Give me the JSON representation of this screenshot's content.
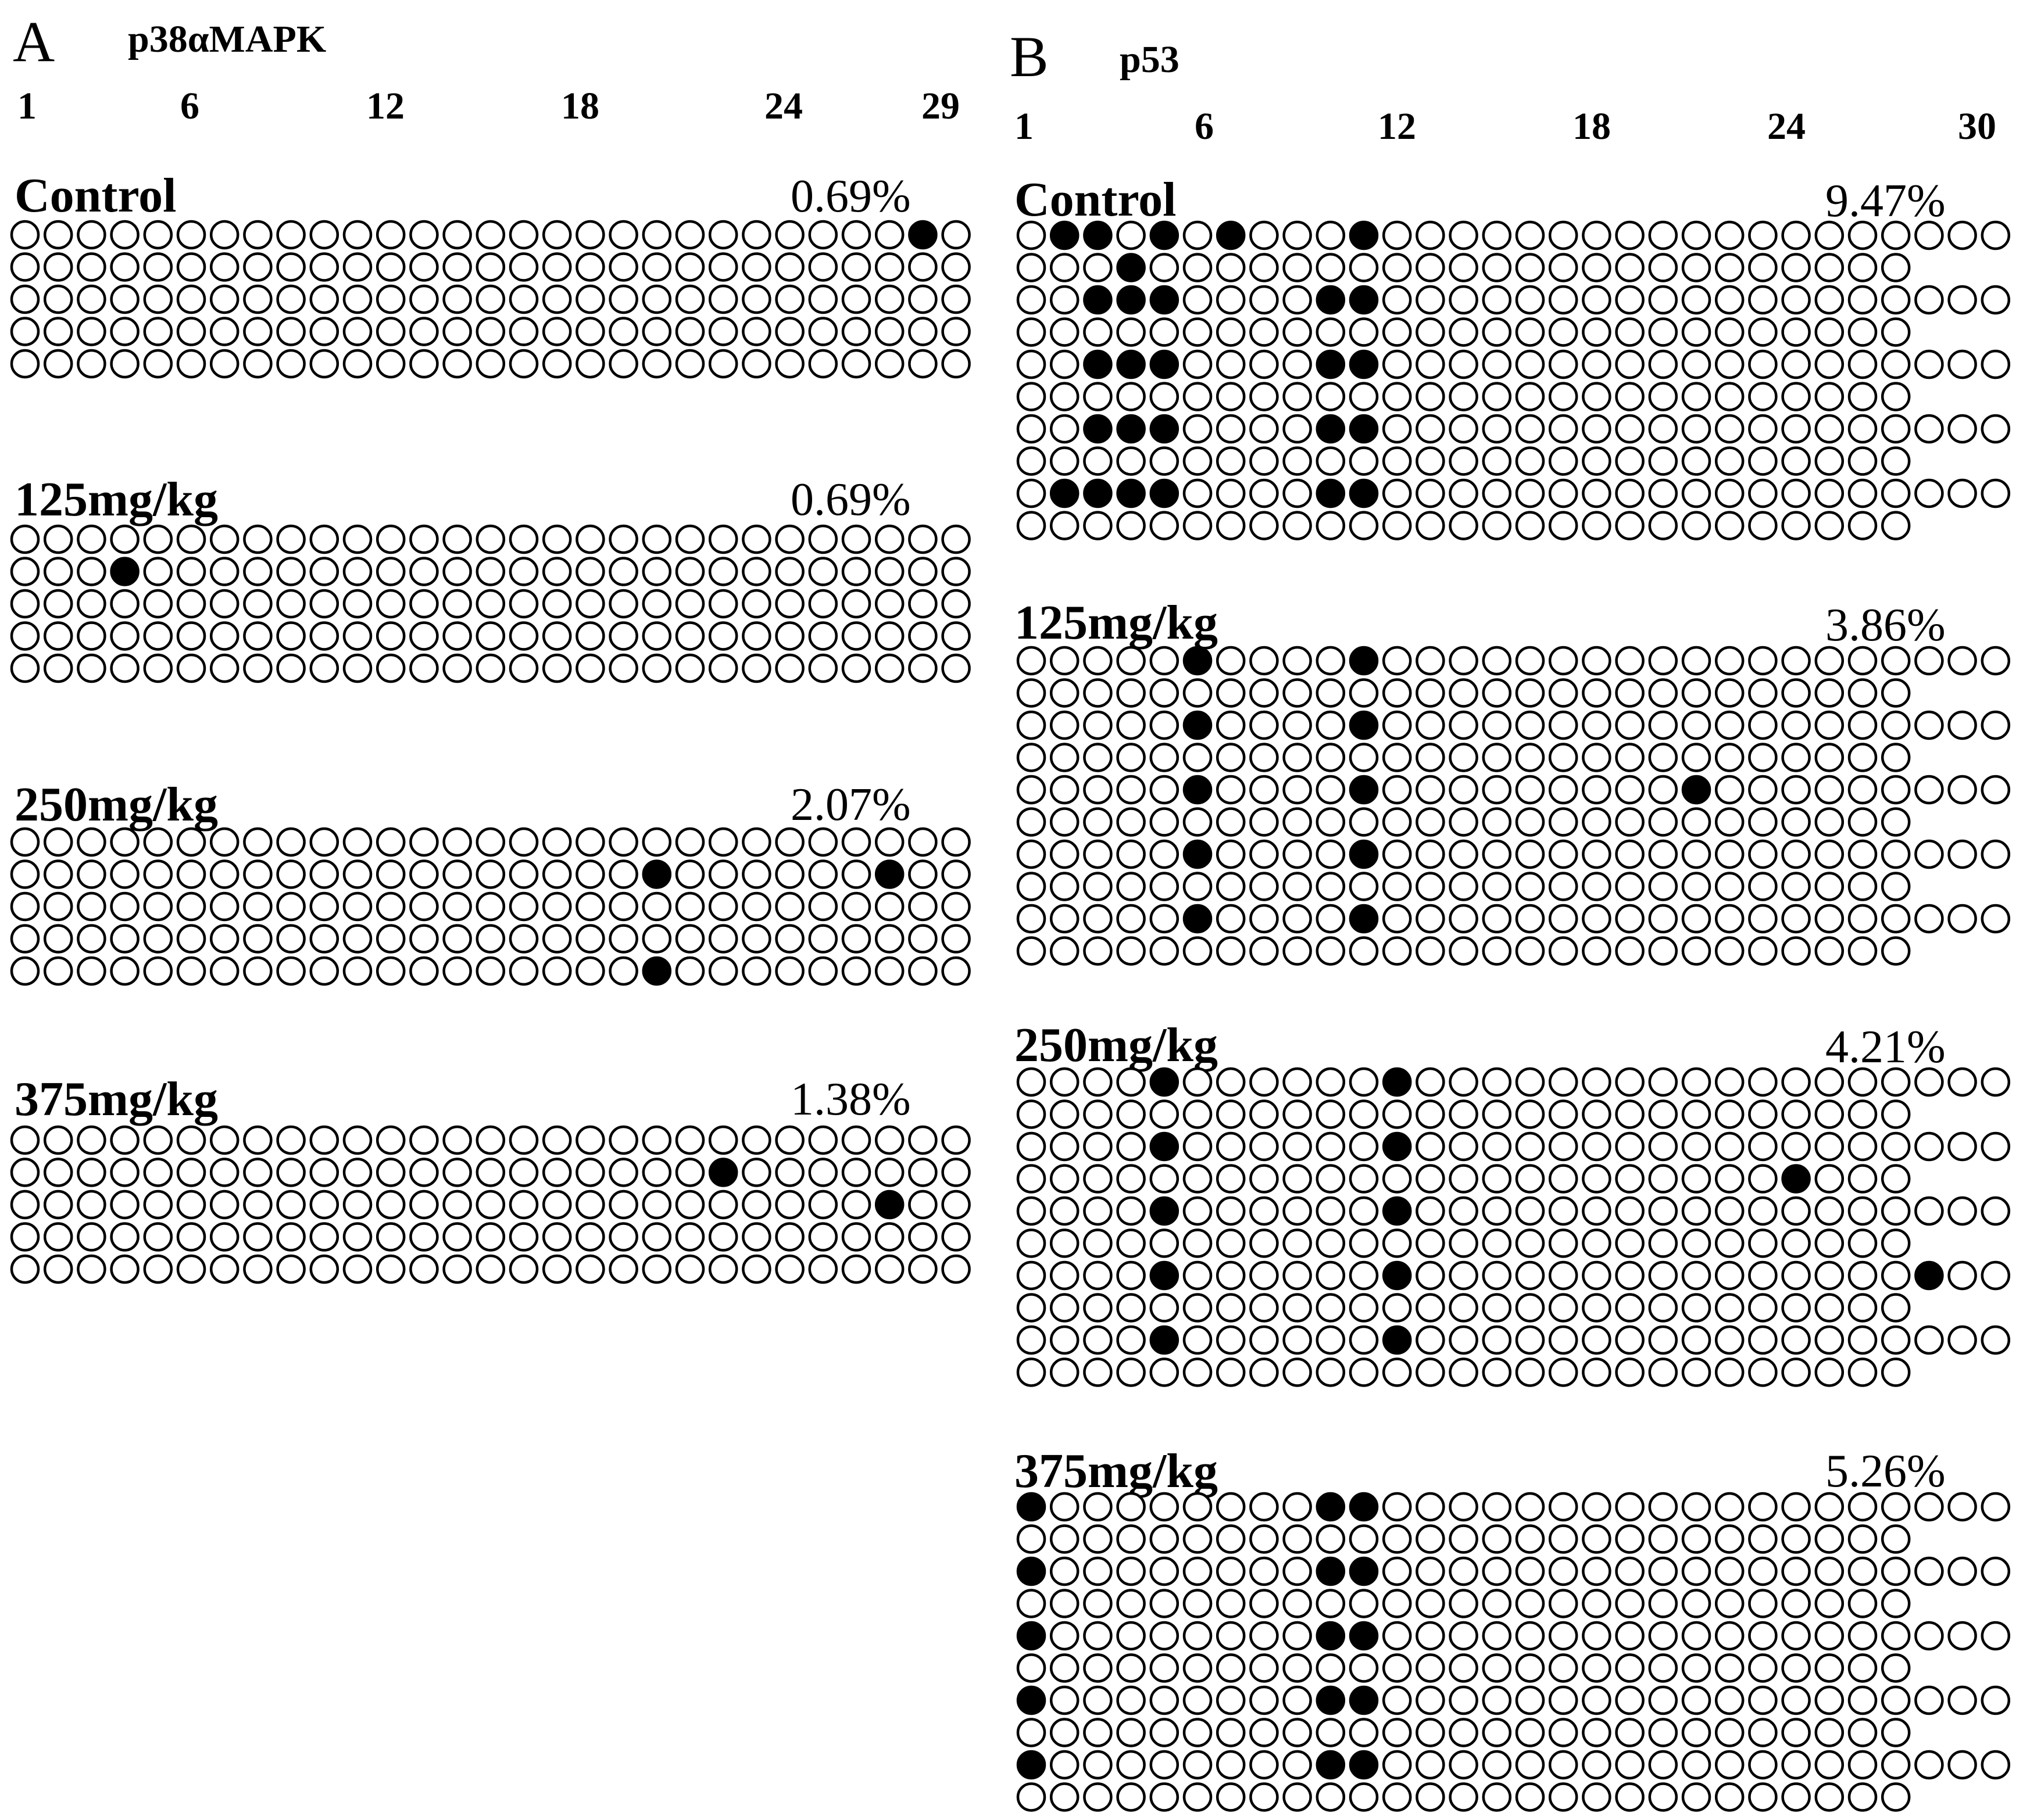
{
  "panels": [
    {
      "id": "A",
      "letter": "A",
      "gene": "p38αMAPK",
      "ticks": [
        "1",
        "6",
        "12",
        "18",
        "24",
        "29"
      ],
      "sites_per_row": 29,
      "groups": [
        {
          "label": "Control",
          "percent": "0.69%",
          "clones": [
            {
              "sites": 29,
              "methylated": [
                28
              ]
            },
            {
              "sites": 29,
              "methylated": []
            },
            {
              "sites": 29,
              "methylated": []
            },
            {
              "sites": 29,
              "methylated": []
            },
            {
              "sites": 29,
              "methylated": []
            }
          ]
        },
        {
          "label": "125mg/kg",
          "percent": "0.69%",
          "clones": [
            {
              "sites": 29,
              "methylated": []
            },
            {
              "sites": 29,
              "methylated": [
                4
              ]
            },
            {
              "sites": 29,
              "methylated": []
            },
            {
              "sites": 29,
              "methylated": []
            },
            {
              "sites": 29,
              "methylated": []
            }
          ]
        },
        {
          "label": "250mg/kg",
          "percent": "2.07%",
          "clones": [
            {
              "sites": 29,
              "methylated": []
            },
            {
              "sites": 29,
              "methylated": [
                20,
                27
              ]
            },
            {
              "sites": 29,
              "methylated": []
            },
            {
              "sites": 29,
              "methylated": []
            },
            {
              "sites": 29,
              "methylated": [
                20
              ]
            }
          ]
        },
        {
          "label": "375mg/kg",
          "percent": "1.38%",
          "clones": [
            {
              "sites": 29,
              "methylated": []
            },
            {
              "sites": 29,
              "methylated": [
                22
              ]
            },
            {
              "sites": 29,
              "methylated": [
                27
              ]
            },
            {
              "sites": 29,
              "methylated": []
            },
            {
              "sites": 29,
              "methylated": []
            }
          ]
        }
      ]
    },
    {
      "id": "B",
      "letter": "B",
      "gene": "p53",
      "ticks": [
        "1",
        "6",
        "12",
        "18",
        "24",
        "30"
      ],
      "sites_per_row": 30,
      "groups": [
        {
          "label": "Control",
          "percent": "9.47%",
          "clones": [
            {
              "sites": 30,
              "methylated": [
                2,
                3,
                5,
                7,
                11
              ]
            },
            {
              "sites": 27,
              "methylated": [
                4
              ]
            },
            {
              "sites": 30,
              "methylated": [
                3,
                4,
                5,
                10,
                11
              ]
            },
            {
              "sites": 27,
              "methylated": []
            },
            {
              "sites": 30,
              "methylated": [
                3,
                4,
                5,
                10,
                11
              ]
            },
            {
              "sites": 27,
              "methylated": []
            },
            {
              "sites": 30,
              "methylated": [
                3,
                4,
                5,
                10,
                11
              ]
            },
            {
              "sites": 27,
              "methylated": []
            },
            {
              "sites": 30,
              "methylated": [
                2,
                3,
                4,
                5,
                10,
                11
              ]
            },
            {
              "sites": 27,
              "methylated": []
            }
          ]
        },
        {
          "label": "125mg/kg",
          "percent": "3.86%",
          "clones": [
            {
              "sites": 30,
              "methylated": [
                6,
                11
              ]
            },
            {
              "sites": 27,
              "methylated": []
            },
            {
              "sites": 30,
              "methylated": [
                6,
                11
              ]
            },
            {
              "sites": 27,
              "methylated": []
            },
            {
              "sites": 30,
              "methylated": [
                6,
                11,
                21
              ]
            },
            {
              "sites": 27,
              "methylated": []
            },
            {
              "sites": 30,
              "methylated": [
                6,
                11
              ]
            },
            {
              "sites": 27,
              "methylated": []
            },
            {
              "sites": 30,
              "methylated": [
                6,
                11
              ]
            },
            {
              "sites": 27,
              "methylated": []
            }
          ]
        },
        {
          "label": "250mg/kg",
          "percent": "4.21%",
          "clones": [
            {
              "sites": 30,
              "methylated": [
                5,
                12
              ]
            },
            {
              "sites": 27,
              "methylated": []
            },
            {
              "sites": 30,
              "methylated": [
                5,
                12
              ]
            },
            {
              "sites": 27,
              "methylated": [
                24
              ]
            },
            {
              "sites": 30,
              "methylated": [
                5,
                12
              ]
            },
            {
              "sites": 27,
              "methylated": []
            },
            {
              "sites": 30,
              "methylated": [
                5,
                12,
                28
              ]
            },
            {
              "sites": 27,
              "methylated": []
            },
            {
              "sites": 30,
              "methylated": [
                5,
                12
              ]
            },
            {
              "sites": 27,
              "methylated": []
            }
          ]
        },
        {
          "label": "375mg/kg",
          "percent": "5.26%",
          "clones": [
            {
              "sites": 30,
              "methylated": [
                1,
                10,
                11
              ]
            },
            {
              "sites": 27,
              "methylated": []
            },
            {
              "sites": 30,
              "methylated": [
                1,
                10,
                11
              ]
            },
            {
              "sites": 27,
              "methylated": []
            },
            {
              "sites": 30,
              "methylated": [
                1,
                10,
                11
              ]
            },
            {
              "sites": 27,
              "methylated": []
            },
            {
              "sites": 30,
              "methylated": [
                1,
                10,
                11
              ]
            },
            {
              "sites": 27,
              "methylated": []
            },
            {
              "sites": 30,
              "methylated": [
                1,
                10,
                11
              ]
            },
            {
              "sites": 27,
              "methylated": []
            }
          ]
        }
      ]
    }
  ]
}
